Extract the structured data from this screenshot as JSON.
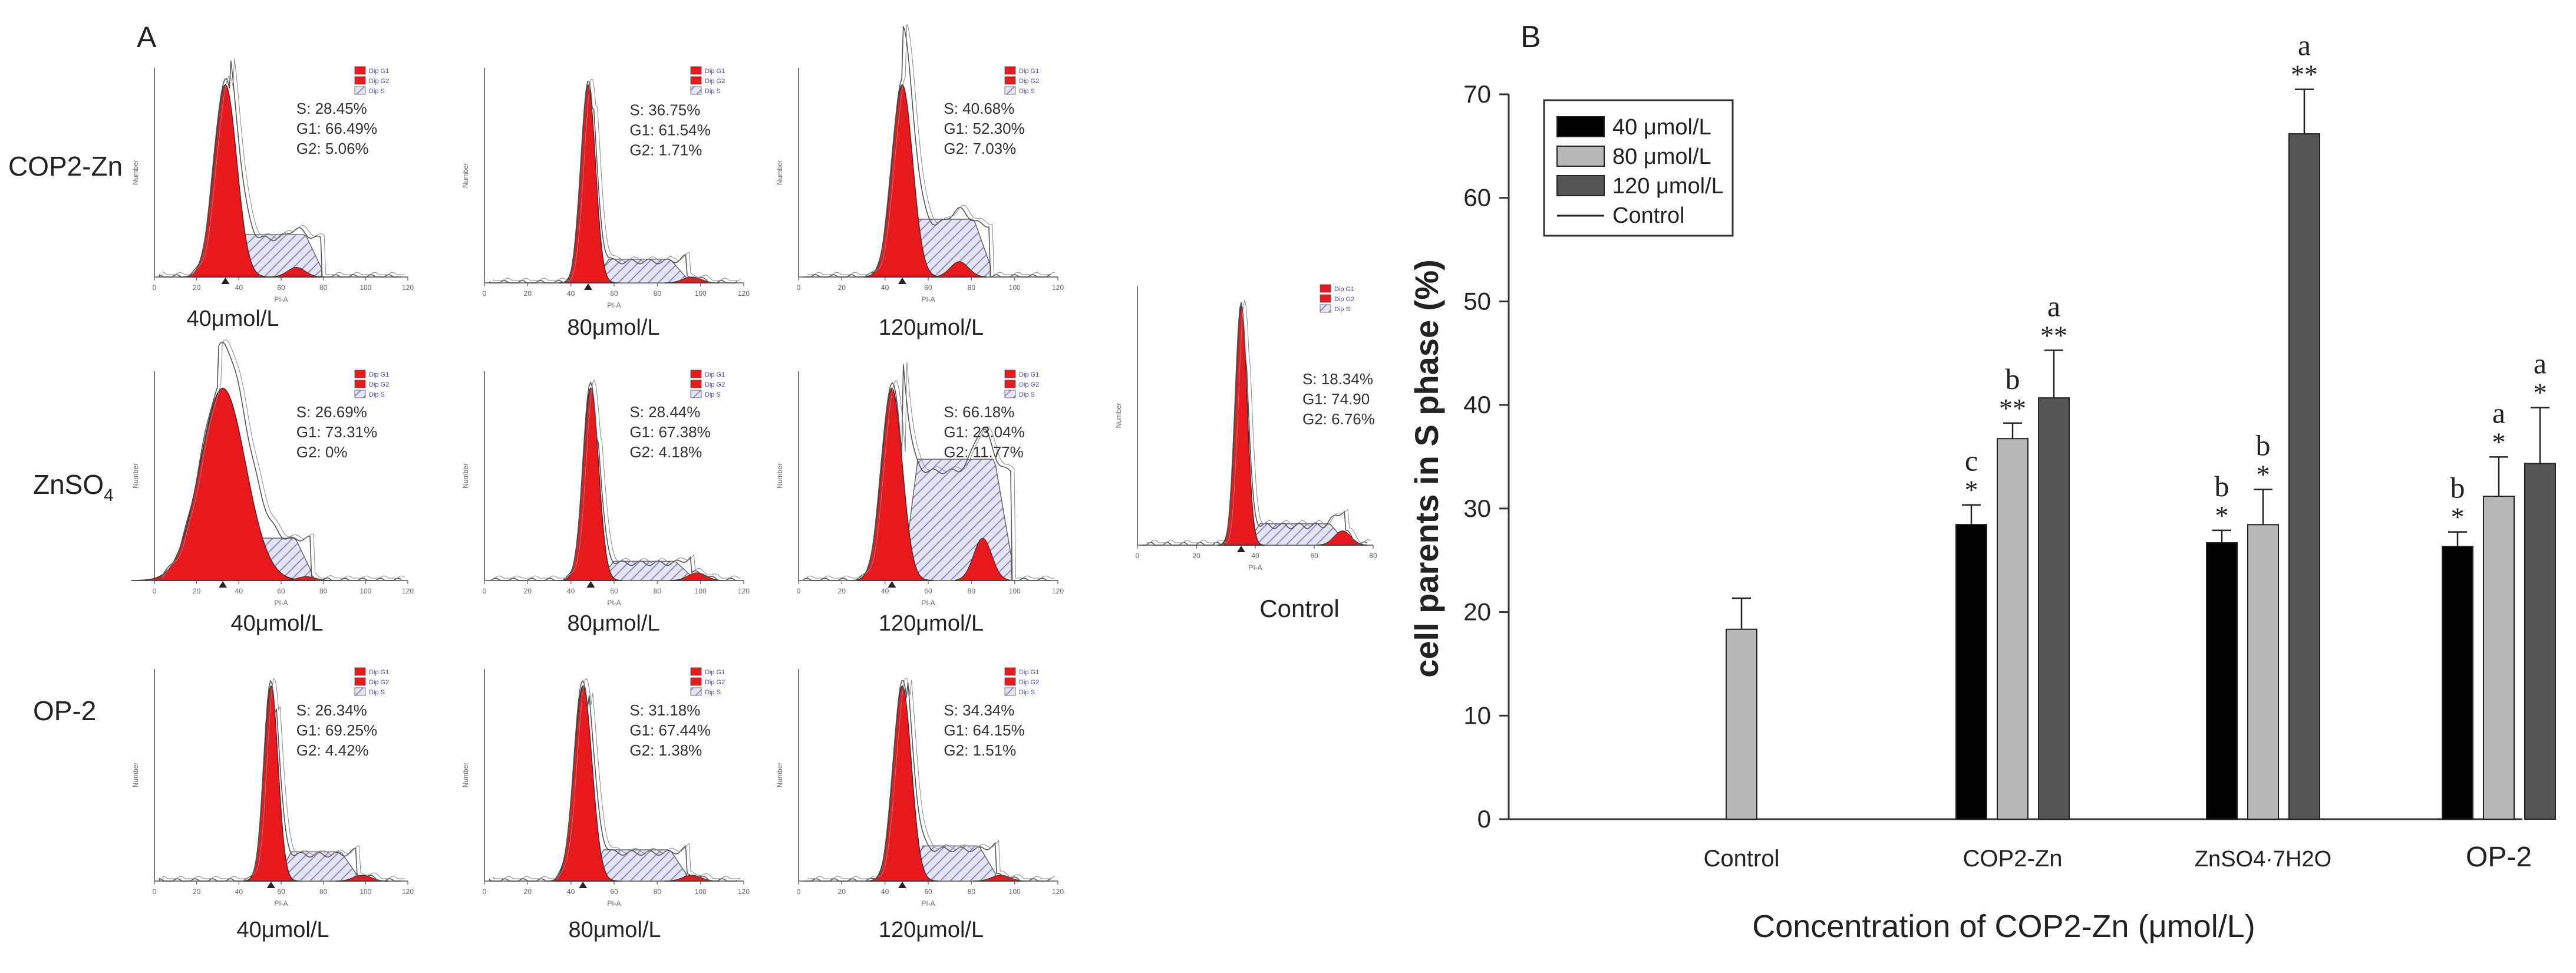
{
  "panel_a": {
    "label": "A",
    "row_labels": [
      "COP2-Zn",
      "ZnSO",
      "OP-2"
    ],
    "row_label_sub": "4",
    "conc_labels": [
      "40μmol/L",
      "80μmol/L",
      "120μmol/L"
    ],
    "control_label": "Control",
    "x_axis_label": "PI-A",
    "y_axis_label": "Number",
    "legend_entries": [
      "Dip G1",
      "Dip G2",
      "Dip S"
    ],
    "plots": [
      {
        "s": "S: 28.45%",
        "g1": "G1: 66.49%",
        "g2": "G2: 5.06%"
      },
      {
        "s": "S: 36.75%",
        "g1": "G1: 61.54%",
        "g2": "G2: 1.71%"
      },
      {
        "s": "S: 40.68%",
        "g1": "G1: 52.30%",
        "g2": "G2: 7.03%"
      },
      {
        "s": "S: 26.69%",
        "g1": "G1: 73.31%",
        "g2": "G2: 0%"
      },
      {
        "s": "S: 28.44%",
        "g1": "G1: 67.38%",
        "g2": "G2: 4.18%"
      },
      {
        "s": "S: 66.18%",
        "g1": "G1: 23.04%",
        "g2": "G2: 11.77%"
      },
      {
        "s": "S: 26.34%",
        "g1": "G1: 69.25%",
        "g2": "G2: 4.42%"
      },
      {
        "s": "S: 31.18%",
        "g1": "G1: 67.44%",
        "g2": "G2: 1.38%"
      },
      {
        "s": "S:  34.34%",
        "g1": "G1: 64.15%",
        "g2": "G2: 1.51%"
      }
    ],
    "control_plot": {
      "s": "S: 18.34%",
      "g1": "G1: 74.90",
      "g2": "G2: 6.76%"
    }
  },
  "colors": {
    "histogram_fill": "#e8191c",
    "s_phase_hatch": "#8c8cc6",
    "bar_40": "#000000",
    "bar_80": "#b8b8b8",
    "bar_120": "#555555"
  },
  "chart_data": {
    "type": "bar",
    "panel_label": "B",
    "title": "",
    "xlabel": "Concentration of COP2-Zn (μmol/L)",
    "ylabel": "cell parents in S phase (%)",
    "ylim": [
      0,
      70
    ],
    "yticks": [
      "0",
      "10",
      "20",
      "30",
      "40",
      "50",
      "60",
      "70"
    ],
    "categories": [
      "Control",
      "COP2-Zn",
      "ZnSO4·7H2O",
      "OP-2"
    ],
    "legend_position": "top-left",
    "legend": [
      "40 μmol/L",
      "80 μmol/L",
      "120 μmol/L",
      "Control"
    ],
    "control": {
      "value": 18.34,
      "error": 3.0
    },
    "series": [
      {
        "name": "40 μmol/L",
        "values": [
          null,
          28.45,
          26.69,
          26.34
        ],
        "errors": [
          null,
          1.9,
          1.2,
          1.4
        ],
        "letters": [
          null,
          "c",
          "b",
          "b"
        ],
        "stars": [
          null,
          "*",
          "*",
          "*"
        ]
      },
      {
        "name": "80 μmol/L",
        "values": [
          null,
          36.75,
          28.44,
          31.18
        ],
        "errors": [
          null,
          1.5,
          3.4,
          3.8
        ],
        "letters": [
          null,
          "b",
          "b",
          "a"
        ],
        "stars": [
          null,
          "**",
          "*",
          "*"
        ]
      },
      {
        "name": "120 μmol/L",
        "values": [
          null,
          40.68,
          66.18,
          34.34
        ],
        "errors": [
          null,
          4.6,
          4.3,
          5.4
        ],
        "letters": [
          null,
          "a",
          "a",
          "a"
        ],
        "stars": [
          null,
          "**",
          "**",
          "*"
        ]
      }
    ]
  }
}
